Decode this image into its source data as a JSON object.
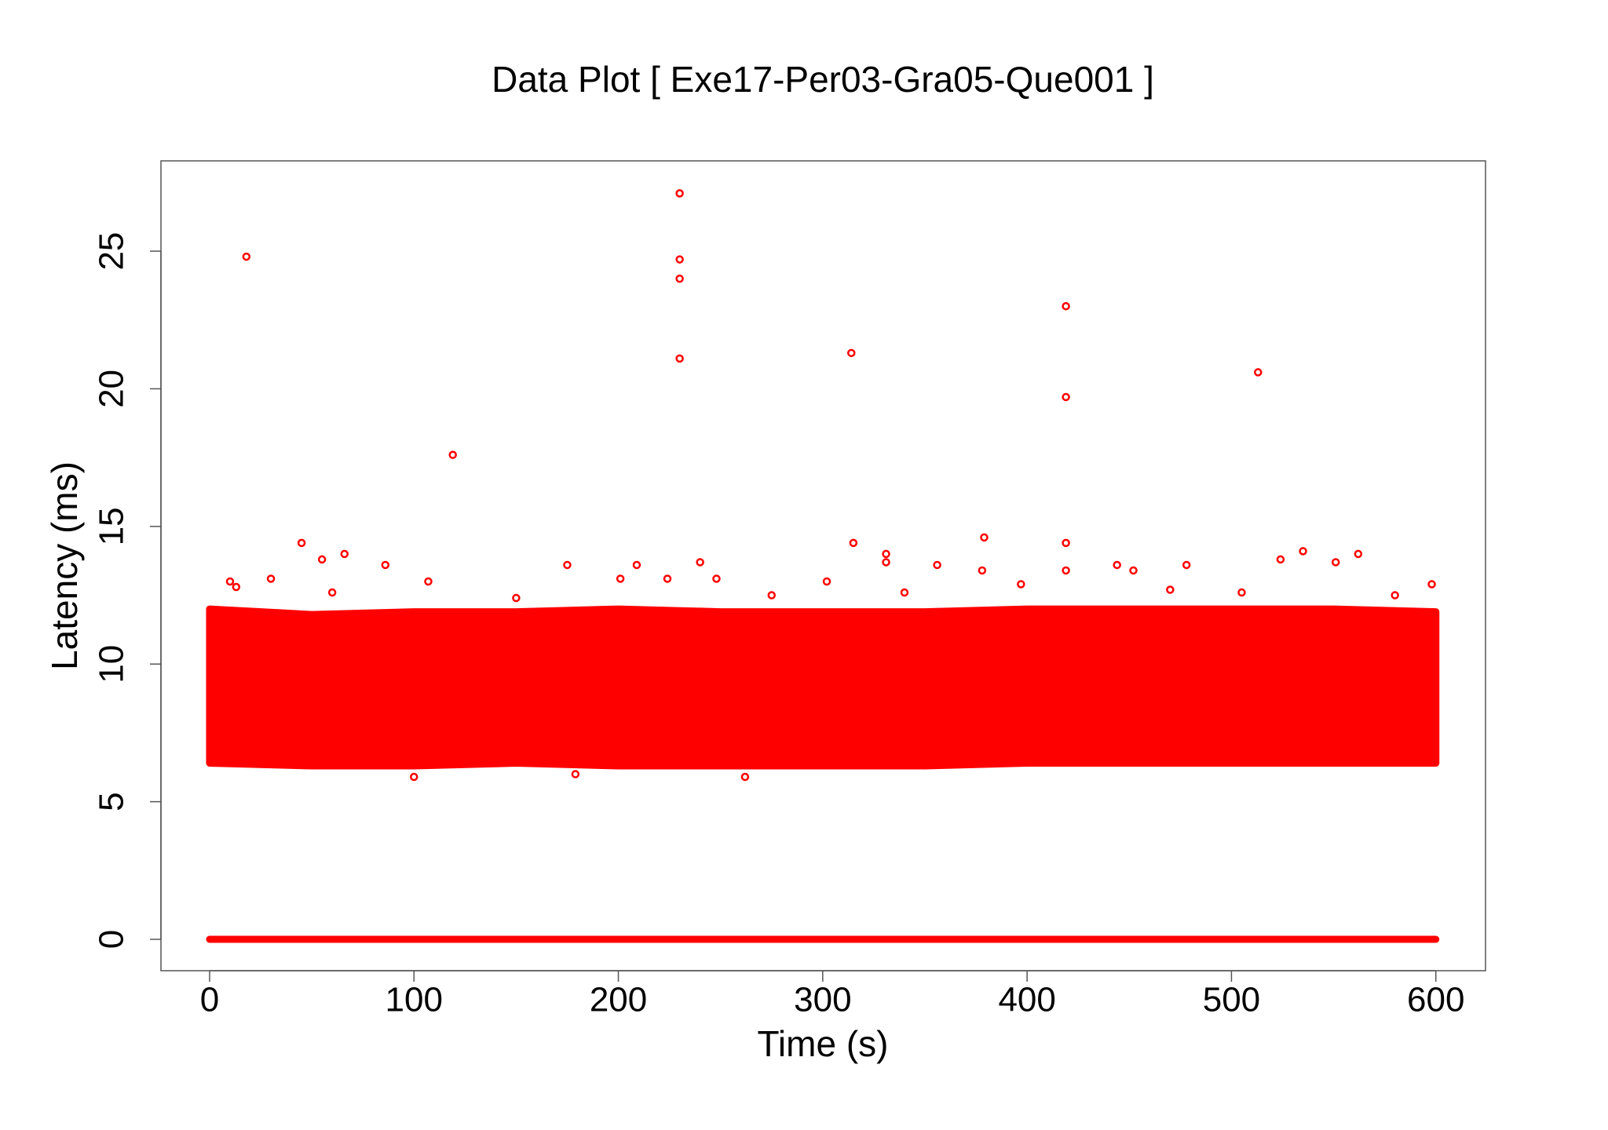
{
  "chart_data": {
    "type": "scatter",
    "title": "Data Plot [ Exe17-Per03-Gra05-Que001 ]",
    "x_label": "Time (s)",
    "y_label": "Latency (ms)",
    "color": "#ff0000",
    "xlim": [
      -23.8,
      624.3
    ],
    "xticks": [
      0,
      100,
      200,
      300,
      400,
      500,
      600
    ],
    "ylim": [
      -1.14,
      28.28
    ],
    "yticks": [
      0,
      5,
      10,
      15,
      20,
      25
    ],
    "bands": [
      {
        "x": [
          0,
          50,
          100,
          150,
          200,
          250,
          300,
          350,
          400,
          450,
          500,
          550,
          600
        ],
        "low": [
          6.4,
          6.3,
          6.3,
          6.4,
          6.3,
          6.3,
          6.3,
          6.3,
          6.4,
          6.4,
          6.4,
          6.4,
          6.4
        ],
        "high": [
          12.0,
          11.8,
          11.9,
          11.9,
          12.0,
          11.9,
          11.9,
          11.9,
          12.0,
          12.0,
          12.0,
          12.0,
          11.9
        ]
      },
      {
        "x": [
          0,
          600
        ],
        "low": [
          0,
          0
        ],
        "high": [
          0,
          0
        ]
      }
    ],
    "points": {
      "x": [
        18,
        230,
        230,
        230,
        230,
        314,
        419,
        419,
        513,
        119,
        45,
        66,
        315,
        331,
        379,
        419,
        535,
        562,
        55,
        86,
        175,
        209,
        240,
        356,
        331,
        444,
        452,
        478,
        551,
        524,
        378,
        419,
        598,
        10,
        30,
        107,
        201,
        224,
        248,
        302,
        397,
        13,
        100,
        262,
        179,
        60,
        150,
        275,
        340,
        470,
        505,
        580
      ],
      "y": [
        24.8,
        27.1,
        24.7,
        24.0,
        21.1,
        21.3,
        23.0,
        19.7,
        20.6,
        17.6,
        14.4,
        14.0,
        14.4,
        14.0,
        14.6,
        14.4,
        14.1,
        14.0,
        13.8,
        13.6,
        13.6,
        13.6,
        13.7,
        13.6,
        13.7,
        13.6,
        13.4,
        13.6,
        13.7,
        13.8,
        13.4,
        13.4,
        12.9,
        13.0,
        13.1,
        13.0,
        13.1,
        13.1,
        13.1,
        13.0,
        12.9,
        12.8,
        5.9,
        5.9,
        6.0,
        12.6,
        12.4,
        12.5,
        12.6,
        12.7,
        12.6,
        12.5
      ]
    }
  }
}
